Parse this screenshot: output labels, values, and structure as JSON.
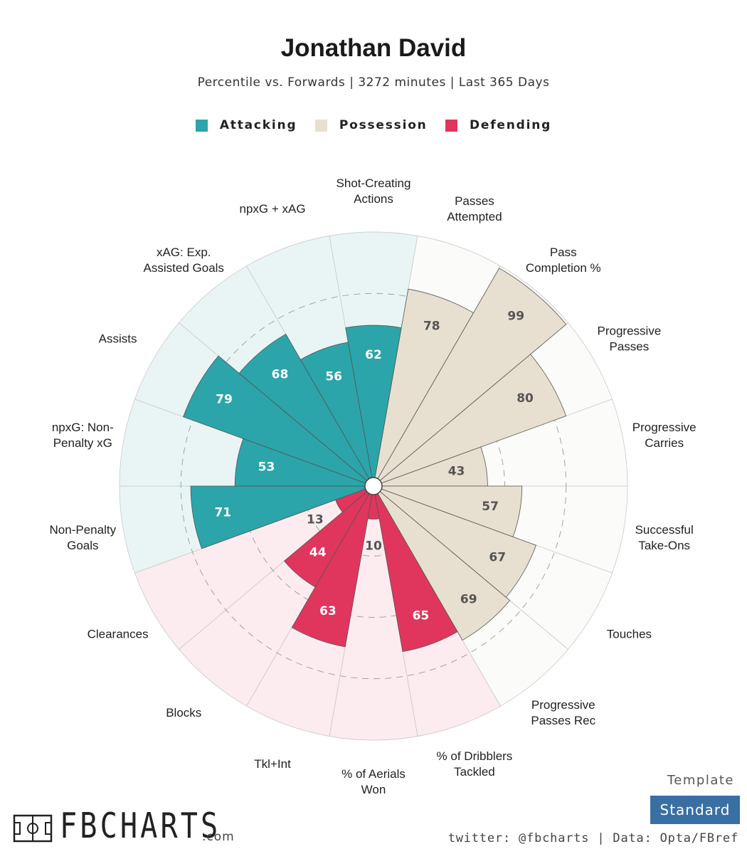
{
  "header": {
    "title": "Jonathan David",
    "subtitle": "Percentile vs. Forwards | 3272 minutes | Last 365 Days"
  },
  "legend": [
    {
      "label": "Attacking",
      "color": "#2ba5a9"
    },
    {
      "label": "Possession",
      "color": "#e7e0d0"
    },
    {
      "label": "Defending",
      "color": "#e0365d"
    }
  ],
  "chart_data": {
    "type": "polar-bar",
    "title": "Jonathan David",
    "subtitle": "Percentile vs. Forwards | 3272 minutes | Last 365 Days",
    "scale": [
      0,
      100
    ],
    "grid": true,
    "legend_position": "top",
    "series": [
      {
        "name": "Attacking",
        "color": "#2ba5a9",
        "background": "#e9f5f5"
      },
      {
        "name": "Possession",
        "color": "#e7e0d0",
        "background": "#fbfbf9"
      },
      {
        "name": "Defending",
        "color": "#e0365d",
        "background": "#fcebef"
      }
    ],
    "categories": [
      {
        "label": "Shot-Creating\nActions",
        "value": 62,
        "group": "Attacking"
      },
      {
        "label": "Passes\nAttempted",
        "value": 78,
        "group": "Possession"
      },
      {
        "label": "Pass\nCompletion %",
        "value": 99,
        "group": "Possession"
      },
      {
        "label": "Progressive\nPasses",
        "value": 80,
        "group": "Possession"
      },
      {
        "label": "Progressive\nCarries",
        "value": 43,
        "group": "Possession"
      },
      {
        "label": "Successful\nTake-Ons",
        "value": 57,
        "group": "Possession"
      },
      {
        "label": "Touches",
        "value": 67,
        "group": "Possession"
      },
      {
        "label": "Progressive\nPasses Rec",
        "value": 69,
        "group": "Possession"
      },
      {
        "label": "% of Dribblers\nTackled",
        "value": 65,
        "group": "Defending"
      },
      {
        "label": "% of Aerials\nWon",
        "value": 10,
        "group": "Defending"
      },
      {
        "label": "Tkl+Int",
        "value": 63,
        "group": "Defending"
      },
      {
        "label": "Blocks",
        "value": 44,
        "group": "Defending"
      },
      {
        "label": "Clearances",
        "value": 13,
        "group": "Defending"
      },
      {
        "label": "Non-Penalty\nGoals",
        "value": 71,
        "group": "Attacking"
      },
      {
        "label": "npxG: Non-\nPenalty xG",
        "value": 53,
        "group": "Attacking"
      },
      {
        "label": "Assists",
        "value": 79,
        "group": "Attacking"
      },
      {
        "label": "xAG: Exp.\nAssisted Goals",
        "value": 68,
        "group": "Attacking"
      },
      {
        "label": "npxG + xAG",
        "value": 56,
        "group": "Attacking"
      }
    ]
  },
  "footer": {
    "brand": "FBCHARTS",
    "brand_suffix": ".com",
    "template_label": "Template",
    "template_value": "Standard",
    "credits": "twitter: @fbcharts | Data: Opta/FBref"
  }
}
